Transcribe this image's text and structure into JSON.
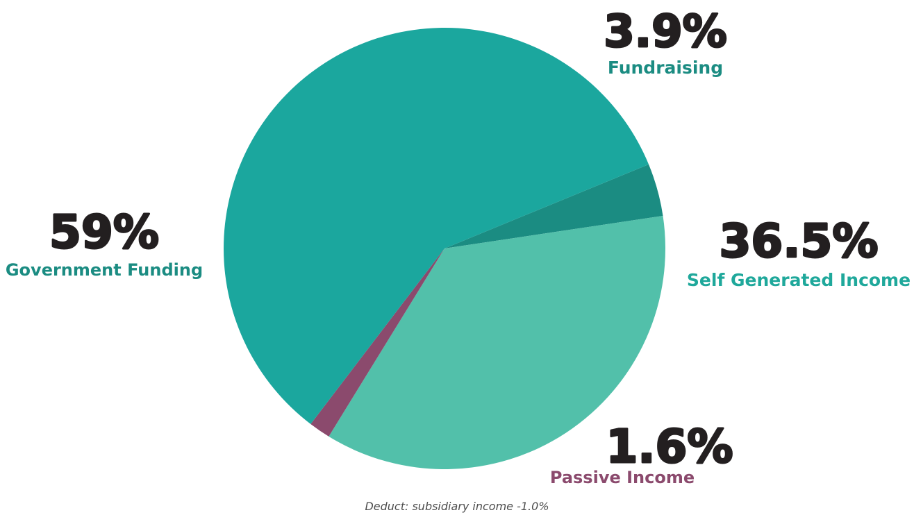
{
  "chart_data": {
    "type": "pie",
    "slices": [
      {
        "label": "Fundraising",
        "value": 3.9,
        "display": "3.9%",
        "color": "#1b8c82",
        "label_color": "#1b8c82"
      },
      {
        "label": "Self Generated Income",
        "value": 36.5,
        "display": "36.5%",
        "color": "#52c0aa",
        "label_color": "#1fa89b"
      },
      {
        "label": "Passive Income",
        "value": 1.6,
        "display": "1.6%",
        "color": "#8b4a6d",
        "label_color": "#8b4a6d"
      },
      {
        "label": "Government Funding",
        "value": 59,
        "display": "59%",
        "color": "#1ba79e",
        "label_color": "#1b8c82"
      }
    ],
    "note": "Deduct: subsidiary income -1.0%"
  }
}
